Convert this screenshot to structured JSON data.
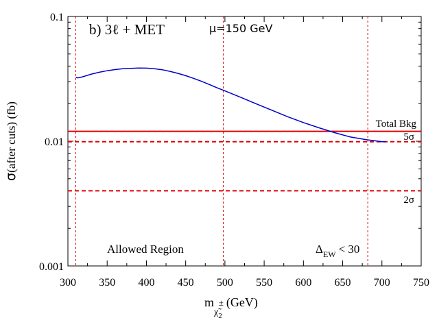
{
  "chart_data": {
    "type": "line",
    "panel_label": "b) 3ℓ + MET",
    "mu_label": "μ=150 GeV",
    "xlabel": {
      "main": "m",
      "sub": "χ̃",
      "sub2": "2",
      "sup": "±",
      "unit": "(GeV)"
    },
    "ylabel": {
      "sigma": "σ",
      "rest": "(after cuts) (fb)"
    },
    "xlim": [
      300,
      750
    ],
    "ylim": [
      0.001,
      0.1
    ],
    "yscale": "log",
    "x_ticks": [
      300,
      350,
      400,
      450,
      500,
      550,
      600,
      650,
      700,
      750
    ],
    "x_tick_labels": [
      "300",
      "350",
      "400",
      "450",
      "500",
      "550",
      "600",
      "650",
      "700",
      "750"
    ],
    "y_ticks": [
      0.001,
      0.01,
      0.1
    ],
    "y_tick_labels": [
      "0.001",
      "0.01",
      "0.1"
    ],
    "series": [
      {
        "name": "signal",
        "color": "#0000cc",
        "x": [
          310,
          312,
          315,
          320,
          330,
          340,
          350,
          360,
          370,
          380,
          390,
          400,
          410,
          420,
          430,
          440,
          450,
          460,
          470,
          480,
          490,
          500,
          520,
          540,
          560,
          580,
          600,
          620,
          640,
          660,
          680,
          700,
          705
        ],
        "y": [
          0.0326,
          0.0322,
          0.0324,
          0.033,
          0.0345,
          0.0357,
          0.0367,
          0.0375,
          0.0381,
          0.0384,
          0.0386,
          0.0385,
          0.0381,
          0.0374,
          0.0363,
          0.035,
          0.0335,
          0.0319,
          0.0302,
          0.0285,
          0.0268,
          0.0253,
          0.0225,
          0.0199,
          0.0177,
          0.0157,
          0.0141,
          0.0128,
          0.0117,
          0.0108,
          0.0103,
          0.0099,
          0.0099
        ]
      }
    ],
    "hlines": [
      {
        "name": "total-bkg",
        "y": 0.012,
        "style": "solid",
        "color": "#e00000",
        "label": "Total Bkg"
      },
      {
        "name": "5sigma",
        "y": 0.0099,
        "style": "dashed",
        "color": "#e00000",
        "label": "5σ"
      },
      {
        "name": "2sigma",
        "y": 0.004,
        "style": "dashed",
        "color": "#e00000",
        "label": "2σ"
      }
    ],
    "vlines": [
      {
        "name": "allowed-limit",
        "x": 310,
        "color": "#e00000"
      },
      {
        "name": "mid",
        "x": 498,
        "color": "#e00000"
      },
      {
        "name": "ew-limit",
        "x": 682,
        "color": "#e00000"
      }
    ],
    "annotations": {
      "allowed_region": "Allowed Region",
      "delta_symbol": "Δ",
      "delta_sub": "EW",
      "delta_rest": "< 30"
    }
  }
}
